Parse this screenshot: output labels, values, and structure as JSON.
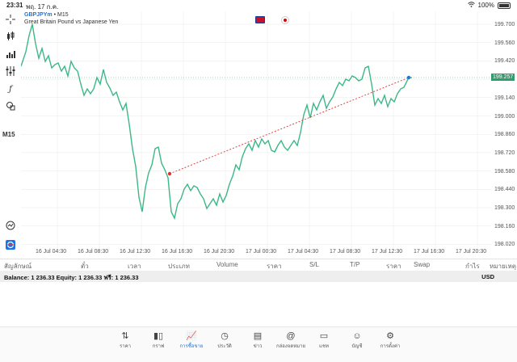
{
  "status_bar": {
    "time": "23:31",
    "date": "พฤ. 17 ก.ค.",
    "battery": "100%"
  },
  "chart": {
    "symbol": "GBPJPYm",
    "timeframe": "M15",
    "description": "Great Britain Pound vs Japanese Yen",
    "current_price": "199.257",
    "y_ticks": [
      "199.700",
      "199.560",
      "199.420",
      "199.140",
      "199.000",
      "198.860",
      "198.720",
      "198.580",
      "198.440",
      "198.300",
      "198.160",
      "198.020"
    ],
    "x_ticks": [
      "16 Jul 04:30",
      "16 Jul 08:30",
      "16 Jul 12:30",
      "16 Jul 16:30",
      "16 Jul 20:30",
      "17 Jul 00:30",
      "17 Jul 04:30",
      "17 Jul 08:30",
      "17 Jul 12:30",
      "17 Jul 16:30",
      "17 Jul 20:30"
    ],
    "line_color": "#3cb887",
    "trend_color": "#d33",
    "grid_color": "#e8e8e8"
  },
  "toolbar": {
    "timeframe_label": "M15"
  },
  "table_header": [
    "สัญลักษณ์",
    "ตั๋ว",
    "เวลา",
    "ประเภท",
    "Volume",
    "ราคา",
    "S/L",
    "T/P",
    "ราคา",
    "Swap",
    "กำไร",
    "หมายเหตุ"
  ],
  "balance": {
    "text": "Balance: 1 236.33 Equity: 1 236.33 ฟรี: 1 236.33",
    "currency": "USD"
  },
  "bottom_nav": [
    {
      "label": "ราคา",
      "icon": "swap-arrows-icon"
    },
    {
      "label": "กราฟ",
      "icon": "candles-icon"
    },
    {
      "label": "การซื้อขาย",
      "icon": "trade-chart-icon",
      "active": true
    },
    {
      "label": "ประวัติ",
      "icon": "history-icon"
    },
    {
      "label": "ข่าว",
      "icon": "news-icon"
    },
    {
      "label": "กล่องจดหมาย",
      "icon": "mailbox-icon"
    },
    {
      "label": "แชท",
      "icon": "chat-icon"
    },
    {
      "label": "บัญชี",
      "icon": "account-icon"
    },
    {
      "label": "การตั้งค่า",
      "icon": "settings-icon"
    }
  ]
}
